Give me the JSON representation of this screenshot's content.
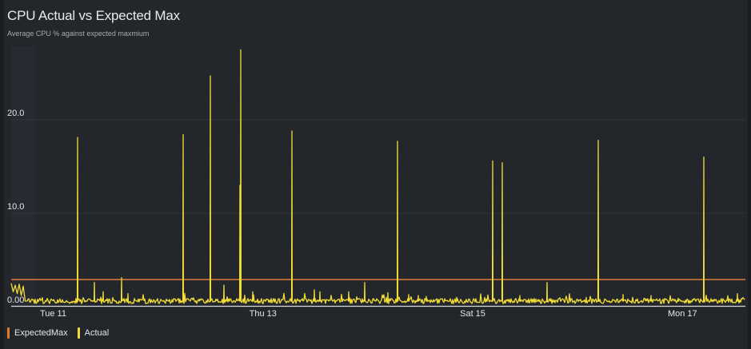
{
  "header": {
    "title": "CPU Actual vs Expected Max",
    "subtitle": "Average CPU % against expected maxmium"
  },
  "colors": {
    "background": "#23272c",
    "expected_max": "#d0763a",
    "actual": "#f2dc35",
    "grid": "#30353a",
    "axis": "#d8d9da"
  },
  "legend": [
    {
      "label": "ExpectedMax",
      "color": "#e07b2c"
    },
    {
      "label": "Actual",
      "color": "#f2dc35"
    }
  ],
  "y_axis": {
    "ticks": [
      {
        "label": "0.00",
        "value": 0
      },
      {
        "label": "10.0",
        "value": 10
      },
      {
        "label": "20.0",
        "value": 20
      }
    ]
  },
  "x_axis": {
    "ticks": [
      {
        "label": "Tue 11",
        "day": 1
      },
      {
        "label": "Thu 13",
        "day": 3
      },
      {
        "label": "Sat 15",
        "day": 5
      },
      {
        "label": "Mon 17",
        "day": 7
      }
    ]
  },
  "chart_data": {
    "type": "line",
    "title": "CPU Actual vs Expected Max",
    "subtitle": "Average CPU % against expected maxmium",
    "xlabel": "",
    "ylabel": "",
    "ylim": [
      0,
      28
    ],
    "x_range_days": [
      0.6,
      7.6
    ],
    "x_tick_labels": [
      "Tue 11",
      "Thu 13",
      "Sat 15",
      "Mon 17"
    ],
    "y_tick_labels": [
      "0.00",
      "10.0",
      "20.0"
    ],
    "grid": true,
    "legend_position": "bottom-left",
    "series": [
      {
        "name": "ExpectedMax",
        "type": "constant",
        "value": 2.9
      },
      {
        "name": "Actual",
        "baseline": 0.6,
        "start_values": [
          2.5,
          1.6,
          2.3,
          1.4,
          2.4,
          1.2,
          2.2,
          0.6
        ],
        "spikes": [
          {
            "day": 0.83,
            "value": 0.8
          },
          {
            "day": 1.23,
            "value": 18.1
          },
          {
            "day": 1.39,
            "value": 2.6
          },
          {
            "day": 1.48,
            "value": 1.6
          },
          {
            "day": 1.65,
            "value": 3.1
          },
          {
            "day": 1.71,
            "value": 1.4
          },
          {
            "day": 2.24,
            "value": 18.4
          },
          {
            "day": 2.5,
            "value": 24.7
          },
          {
            "day": 2.63,
            "value": 2.3
          },
          {
            "day": 2.78,
            "value": 13.0
          },
          {
            "day": 2.79,
            "value": 27.5
          },
          {
            "day": 2.9,
            "value": 1.6
          },
          {
            "day": 3.28,
            "value": 18.8
          },
          {
            "day": 3.49,
            "value": 1.8
          },
          {
            "day": 3.54,
            "value": 1.6
          },
          {
            "day": 3.82,
            "value": 1.6
          },
          {
            "day": 3.97,
            "value": 2.6
          },
          {
            "day": 4.19,
            "value": 1.5
          },
          {
            "day": 4.39,
            "value": 1.3
          },
          {
            "day": 4.48,
            "value": 1.2
          },
          {
            "day": 4.28,
            "value": 17.7
          },
          {
            "day": 4.56,
            "value": 1.1
          },
          {
            "day": 4.85,
            "value": 1.0
          },
          {
            "day": 5.19,
            "value": 15.6
          },
          {
            "day": 5.28,
            "value": 15.4
          },
          {
            "day": 5.45,
            "value": 1.2
          },
          {
            "day": 5.71,
            "value": 2.6
          },
          {
            "day": 6.08,
            "value": 1.0
          },
          {
            "day": 6.2,
            "value": 17.8
          },
          {
            "day": 6.43,
            "value": 1.3
          },
          {
            "day": 6.7,
            "value": 1.2
          },
          {
            "day": 6.96,
            "value": 0.9
          },
          {
            "day": 7.2,
            "value": 16.0
          },
          {
            "day": 7.52,
            "value": 1.4
          },
          {
            "day": 7.6,
            "value": 1.0
          }
        ]
      }
    ]
  }
}
